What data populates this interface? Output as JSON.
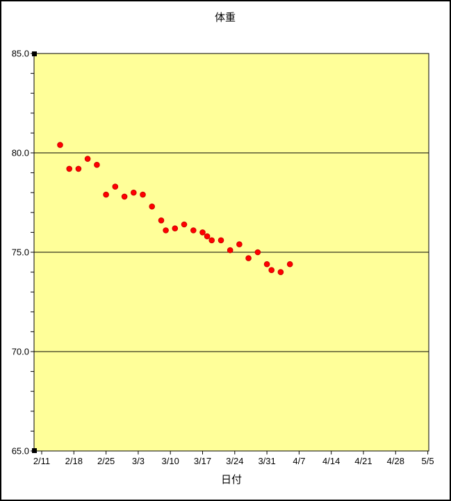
{
  "chart_data": {
    "type": "scatter",
    "title": "体重",
    "xlabel": "日付",
    "ylabel": "",
    "ylim": [
      65.0,
      85.0
    ],
    "y_ticks": [
      65,
      70,
      75,
      80,
      85
    ],
    "y_tick_labels": [
      "65.0",
      "70.0",
      "75.0",
      "80.0",
      "85.0"
    ],
    "y_minor_tick_step": 1,
    "grid": "horizontal major gridlines only",
    "legend": "none",
    "x_axis_start_date": "2/11",
    "x_tick_interval_days": 7,
    "x_tick_labels": [
      "2/11",
      "2/18",
      "2/25",
      "3/3",
      "3/10",
      "3/17",
      "3/24",
      "3/31",
      "4/7",
      "4/14",
      "4/21",
      "4/28",
      "5/5"
    ],
    "points": [
      {
        "date": "2/15",
        "day": 4,
        "value": 80.4
      },
      {
        "date": "2/17",
        "day": 6,
        "value": 79.2
      },
      {
        "date": "2/19",
        "day": 8,
        "value": 79.2
      },
      {
        "date": "2/21",
        "day": 10,
        "value": 79.7
      },
      {
        "date": "2/23",
        "day": 12,
        "value": 79.4
      },
      {
        "date": "2/25",
        "day": 14,
        "value": 77.9
      },
      {
        "date": "2/27",
        "day": 16,
        "value": 78.3
      },
      {
        "date": "2/29",
        "day": 18,
        "value": 77.8
      },
      {
        "date": "3/2",
        "day": 20,
        "value": 78.0
      },
      {
        "date": "3/4",
        "day": 22,
        "value": 77.9
      },
      {
        "date": "3/6",
        "day": 24,
        "value": 77.3
      },
      {
        "date": "3/8",
        "day": 26,
        "value": 76.6
      },
      {
        "date": "3/9",
        "day": 27,
        "value": 76.1
      },
      {
        "date": "3/11",
        "day": 29,
        "value": 76.2
      },
      {
        "date": "3/13",
        "day": 31,
        "value": 76.4
      },
      {
        "date": "3/15",
        "day": 33,
        "value": 76.1
      },
      {
        "date": "3/17",
        "day": 35,
        "value": 76.0
      },
      {
        "date": "3/18",
        "day": 36,
        "value": 75.8
      },
      {
        "date": "3/19",
        "day": 37,
        "value": 75.6
      },
      {
        "date": "3/21",
        "day": 39,
        "value": 75.6
      },
      {
        "date": "3/23",
        "day": 41,
        "value": 75.1
      },
      {
        "date": "3/25",
        "day": 43,
        "value": 75.4
      },
      {
        "date": "3/27",
        "day": 45,
        "value": 74.7
      },
      {
        "date": "3/29",
        "day": 47,
        "value": 75.0
      },
      {
        "date": "3/31",
        "day": 49,
        "value": 74.4
      },
      {
        "date": "4/1",
        "day": 50,
        "value": 74.1
      },
      {
        "date": "4/3",
        "day": 52,
        "value": 74.0
      },
      {
        "date": "4/5",
        "day": 54,
        "value": 74.4
      }
    ],
    "colors": {
      "plot_background": "#FFFF99",
      "outer_background": "#FFFFFF",
      "marker_fill": "#FF0000",
      "marker_edge": "#CC0000",
      "axis_and_grid": "#000000"
    },
    "annotations": "y-axis shows black selection handles at both ends"
  }
}
